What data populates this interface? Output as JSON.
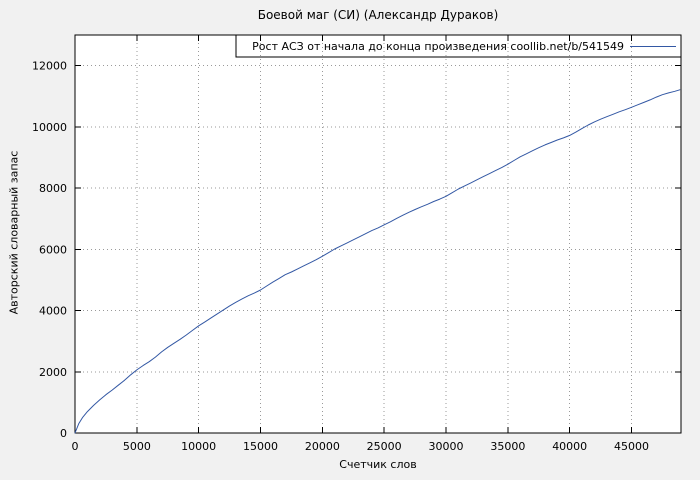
{
  "chart_data": {
    "type": "line",
    "title": "Боевой маг (СИ) (Александр Дураков)",
    "xlabel": "Счетчик слов",
    "ylabel": "Авторский словарный запас",
    "legend": "Рост АСЗ от начала до конца произведения  coollib.net/b/541549",
    "legend_position": "top-right-boxed",
    "grid": true,
    "xlim": [
      0,
      49000
    ],
    "ylim": [
      0,
      13000
    ],
    "xticks": [
      0,
      5000,
      10000,
      15000,
      20000,
      25000,
      30000,
      35000,
      40000,
      45000
    ],
    "yticks": [
      0,
      2000,
      4000,
      6000,
      8000,
      10000,
      12000
    ],
    "line_color": "#3358a4",
    "plot_bg": "#ffffff",
    "outer_bg": "#f1f1f1",
    "series": [
      {
        "name": "Рост АСЗ от начала до конца произведения  coollib.net/b/541549",
        "points": [
          [
            0,
            0
          ],
          [
            300,
            300
          ],
          [
            600,
            500
          ],
          [
            1000,
            700
          ],
          [
            1500,
            900
          ],
          [
            2000,
            1080
          ],
          [
            2500,
            1250
          ],
          [
            3000,
            1400
          ],
          [
            3500,
            1560
          ],
          [
            4000,
            1720
          ],
          [
            4500,
            1900
          ],
          [
            5000,
            2060
          ],
          [
            5500,
            2200
          ],
          [
            6000,
            2330
          ],
          [
            6500,
            2480
          ],
          [
            7000,
            2650
          ],
          [
            7500,
            2800
          ],
          [
            8000,
            2930
          ],
          [
            8500,
            3060
          ],
          [
            9000,
            3200
          ],
          [
            9500,
            3350
          ],
          [
            10000,
            3500
          ],
          [
            10500,
            3630
          ],
          [
            11000,
            3760
          ],
          [
            11500,
            3890
          ],
          [
            12000,
            4020
          ],
          [
            12500,
            4150
          ],
          [
            13000,
            4270
          ],
          [
            13500,
            4380
          ],
          [
            14000,
            4480
          ],
          [
            14500,
            4570
          ],
          [
            15000,
            4670
          ],
          [
            15500,
            4800
          ],
          [
            16000,
            4930
          ],
          [
            16500,
            5050
          ],
          [
            17000,
            5170
          ],
          [
            17500,
            5260
          ],
          [
            18000,
            5360
          ],
          [
            18500,
            5460
          ],
          [
            19000,
            5560
          ],
          [
            19500,
            5660
          ],
          [
            20000,
            5770
          ],
          [
            20500,
            5890
          ],
          [
            21000,
            6010
          ],
          [
            21500,
            6110
          ],
          [
            22000,
            6210
          ],
          [
            22500,
            6310
          ],
          [
            23000,
            6410
          ],
          [
            23500,
            6510
          ],
          [
            24000,
            6610
          ],
          [
            24500,
            6700
          ],
          [
            25000,
            6800
          ],
          [
            25500,
            6900
          ],
          [
            26000,
            7010
          ],
          [
            26500,
            7110
          ],
          [
            27000,
            7210
          ],
          [
            27500,
            7300
          ],
          [
            28000,
            7390
          ],
          [
            28500,
            7470
          ],
          [
            29000,
            7560
          ],
          [
            29500,
            7640
          ],
          [
            30000,
            7730
          ],
          [
            30500,
            7850
          ],
          [
            31000,
            7970
          ],
          [
            31500,
            8070
          ],
          [
            32000,
            8170
          ],
          [
            32500,
            8270
          ],
          [
            33000,
            8370
          ],
          [
            33500,
            8470
          ],
          [
            34000,
            8570
          ],
          [
            34500,
            8670
          ],
          [
            35000,
            8780
          ],
          [
            35500,
            8900
          ],
          [
            36000,
            9020
          ],
          [
            36500,
            9120
          ],
          [
            37000,
            9220
          ],
          [
            37500,
            9320
          ],
          [
            38000,
            9410
          ],
          [
            38500,
            9490
          ],
          [
            39000,
            9570
          ],
          [
            39500,
            9640
          ],
          [
            40000,
            9720
          ],
          [
            40500,
            9830
          ],
          [
            41000,
            9950
          ],
          [
            41500,
            10060
          ],
          [
            42000,
            10160
          ],
          [
            42500,
            10250
          ],
          [
            43000,
            10330
          ],
          [
            43500,
            10410
          ],
          [
            44000,
            10490
          ],
          [
            44500,
            10560
          ],
          [
            45000,
            10640
          ],
          [
            45500,
            10720
          ],
          [
            46000,
            10800
          ],
          [
            46500,
            10880
          ],
          [
            47000,
            10970
          ],
          [
            47500,
            11050
          ],
          [
            48000,
            11110
          ],
          [
            48500,
            11160
          ],
          [
            48900,
            11210
          ]
        ]
      }
    ]
  }
}
